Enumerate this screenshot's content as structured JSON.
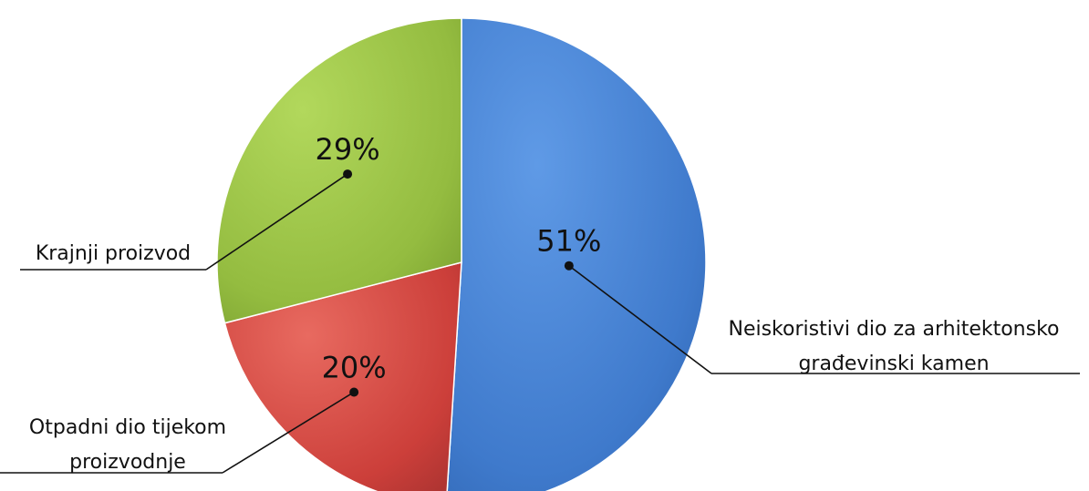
{
  "chart_data": {
    "type": "pie",
    "title": "",
    "legend": "none",
    "slices": [
      {
        "label": "Neiskoristivi dio za arhitektonsko građevinski kamen",
        "label_lines": [
          "Neiskoristivi dio za arhitektonsko",
          "građevinski kamen"
        ],
        "value": 51,
        "value_label": "51%",
        "color": "#4a86d8"
      },
      {
        "label": "Otpadni dio tijekom proizvodnje",
        "label_lines": [
          "Otpadni dio tijekom",
          "proizvodnje"
        ],
        "value": 20,
        "value_label": "20%",
        "color": "#d8433f"
      },
      {
        "label": "Krajnji proizvod",
        "label_lines": [
          "Krajnji proizvod"
        ],
        "value": 29,
        "value_label": "29%",
        "color": "#9cc444"
      }
    ]
  }
}
